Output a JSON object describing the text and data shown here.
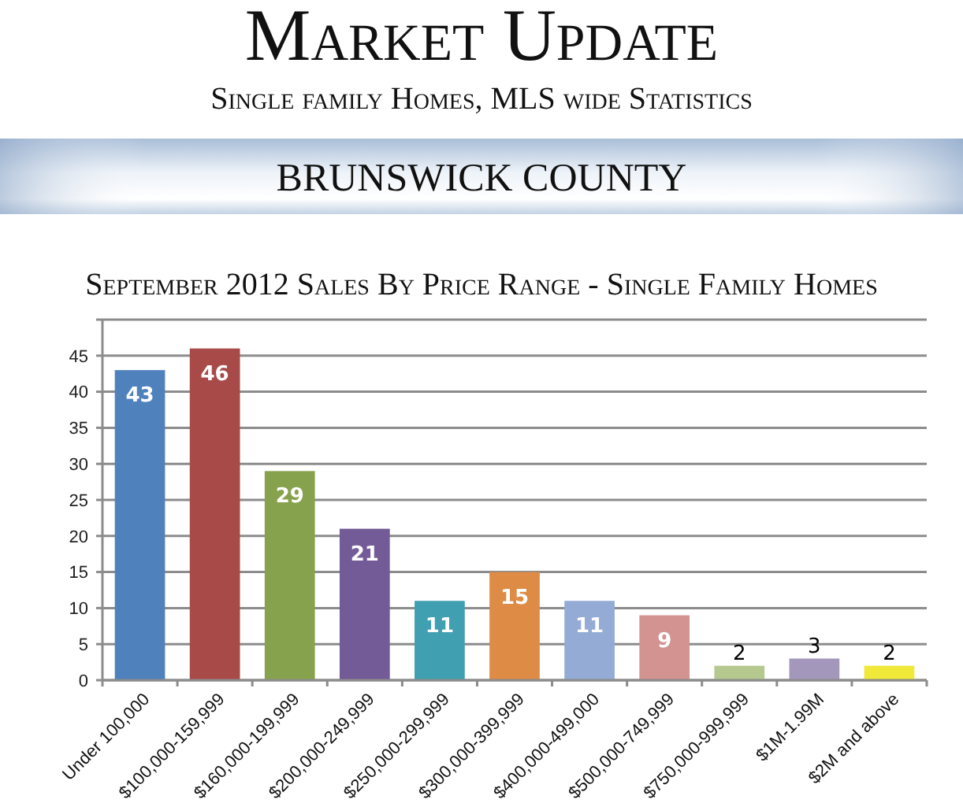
{
  "chart_data": {
    "type": "bar",
    "title": "Market Update",
    "subtitle": "Single family Homes, MLS wide Statistics",
    "annotations": [
      "BRUNSWICK COUNTY",
      "September 2012 Sales By Price Range - Single Family Homes"
    ],
    "categories": [
      "Under 100,000",
      "$100,000-159,999",
      "$160,000-199,999",
      "$200,000-249,999",
      "$250,000-299,999",
      "$300,000-399,999",
      "$400,000-499,000",
      "$500,000-749,999",
      "$750,000-999,999",
      "$1M-1.99M",
      "$2M and above"
    ],
    "values": [
      43,
      46,
      29,
      21,
      11,
      15,
      11,
      9,
      2,
      3,
      2
    ],
    "colors": [
      "#4f81bd",
      "#a84a48",
      "#87a24c",
      "#735b97",
      "#409fb1",
      "#de8b45",
      "#94abd5",
      "#d39391",
      "#b5c98f",
      "#a397bc",
      "#f0e93a"
    ],
    "ylim": [
      0,
      50
    ],
    "yticks": [
      0,
      5,
      10,
      15,
      20,
      25,
      30,
      35,
      40,
      45,
      {
        "value": 50,
        "label": null
      }
    ],
    "grid": true,
    "data_labels": true
  }
}
